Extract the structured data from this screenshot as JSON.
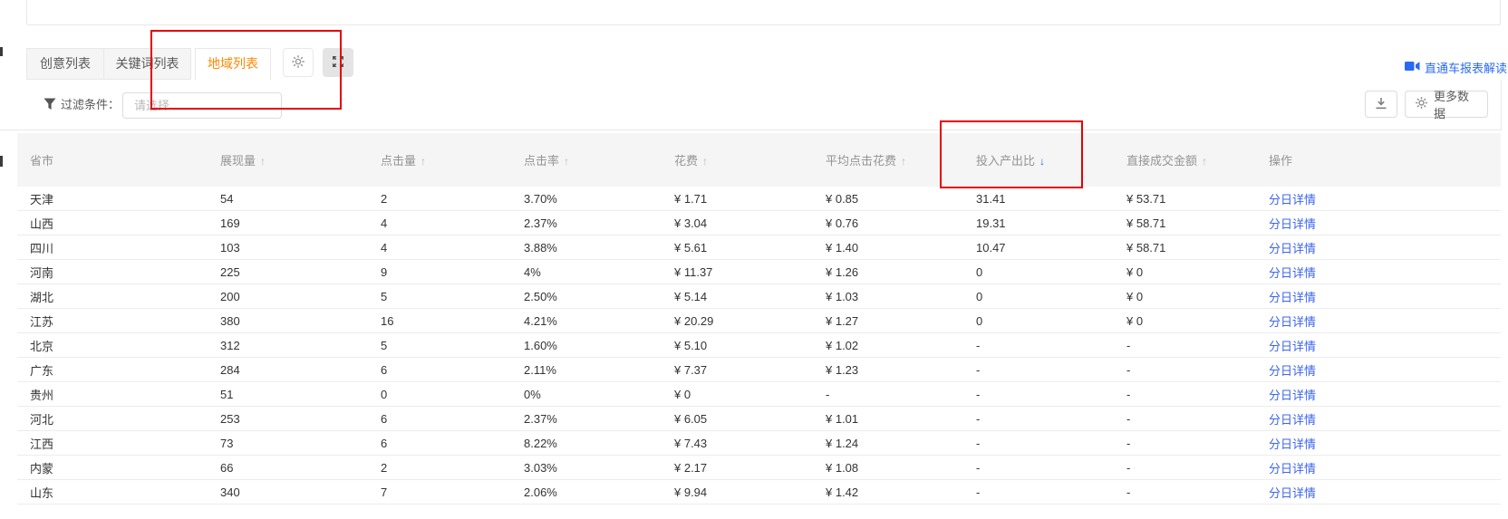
{
  "tabs": [
    {
      "label": "创意列表",
      "active": false
    },
    {
      "label": "关键词列表",
      "active": false
    },
    {
      "label": "地域列表",
      "active": true
    }
  ],
  "tab_tools": {
    "settings_icon": "gear-icon",
    "fullscreen_icon": "fullscreen-icon"
  },
  "report_link": {
    "label": "直通车报表解读",
    "icon": "video-icon"
  },
  "filter": {
    "label": "过滤条件：",
    "placeholder": "请选择"
  },
  "toolbar": {
    "download_icon": "download-icon",
    "more_data_label": "更多数据"
  },
  "table": {
    "columns": [
      {
        "label": "省市",
        "sort": null
      },
      {
        "label": "展现量",
        "sort": "asc"
      },
      {
        "label": "点击量",
        "sort": "asc"
      },
      {
        "label": "点击率",
        "sort": "asc"
      },
      {
        "label": "花费",
        "sort": "asc"
      },
      {
        "label": "平均点击花费",
        "sort": "asc"
      },
      {
        "label": "投入产出比",
        "sort": "desc"
      },
      {
        "label": "直接成交金额",
        "sort": "asc"
      },
      {
        "label": "操作",
        "sort": null
      }
    ],
    "action_label": "分日详情",
    "rows": [
      [
        "天津",
        "54",
        "2",
        "3.70%",
        "¥ 1.71",
        "¥ 0.85",
        "31.41",
        "¥ 53.71"
      ],
      [
        "山西",
        "169",
        "4",
        "2.37%",
        "¥ 3.04",
        "¥ 0.76",
        "19.31",
        "¥ 58.71"
      ],
      [
        "四川",
        "103",
        "4",
        "3.88%",
        "¥ 5.61",
        "¥ 1.40",
        "10.47",
        "¥ 58.71"
      ],
      [
        "河南",
        "225",
        "9",
        "4%",
        "¥ 11.37",
        "¥ 1.26",
        "0",
        "¥ 0"
      ],
      [
        "湖北",
        "200",
        "5",
        "2.50%",
        "¥ 5.14",
        "¥ 1.03",
        "0",
        "¥ 0"
      ],
      [
        "江苏",
        "380",
        "16",
        "4.21%",
        "¥ 20.29",
        "¥ 1.27",
        "0",
        "¥ 0"
      ],
      [
        "北京",
        "312",
        "5",
        "1.60%",
        "¥ 5.10",
        "¥ 1.02",
        "-",
        "-"
      ],
      [
        "广东",
        "284",
        "6",
        "2.11%",
        "¥ 7.37",
        "¥ 1.23",
        "-",
        "-"
      ],
      [
        "贵州",
        "51",
        "0",
        "0%",
        "¥ 0",
        "-",
        "-",
        "-"
      ],
      [
        "河北",
        "253",
        "6",
        "2.37%",
        "¥ 6.05",
        "¥ 1.01",
        "-",
        "-"
      ],
      [
        "江西",
        "73",
        "6",
        "8.22%",
        "¥ 7.43",
        "¥ 1.24",
        "-",
        "-"
      ],
      [
        "内蒙",
        "66",
        "2",
        "3.03%",
        "¥ 2.17",
        "¥ 1.08",
        "-",
        "-"
      ],
      [
        "山东",
        "340",
        "7",
        "2.06%",
        "¥ 9.94",
        "¥ 1.42",
        "-",
        "-"
      ]
    ]
  },
  "colors": {
    "tab_active_orange": "#ff8800",
    "link_blue": "#3b64f0",
    "report_link_blue": "#2a6af2",
    "sort_active_blue": "#2b63f0",
    "annotation_red": "#e60000",
    "header_bg": "#f5f5f5"
  }
}
